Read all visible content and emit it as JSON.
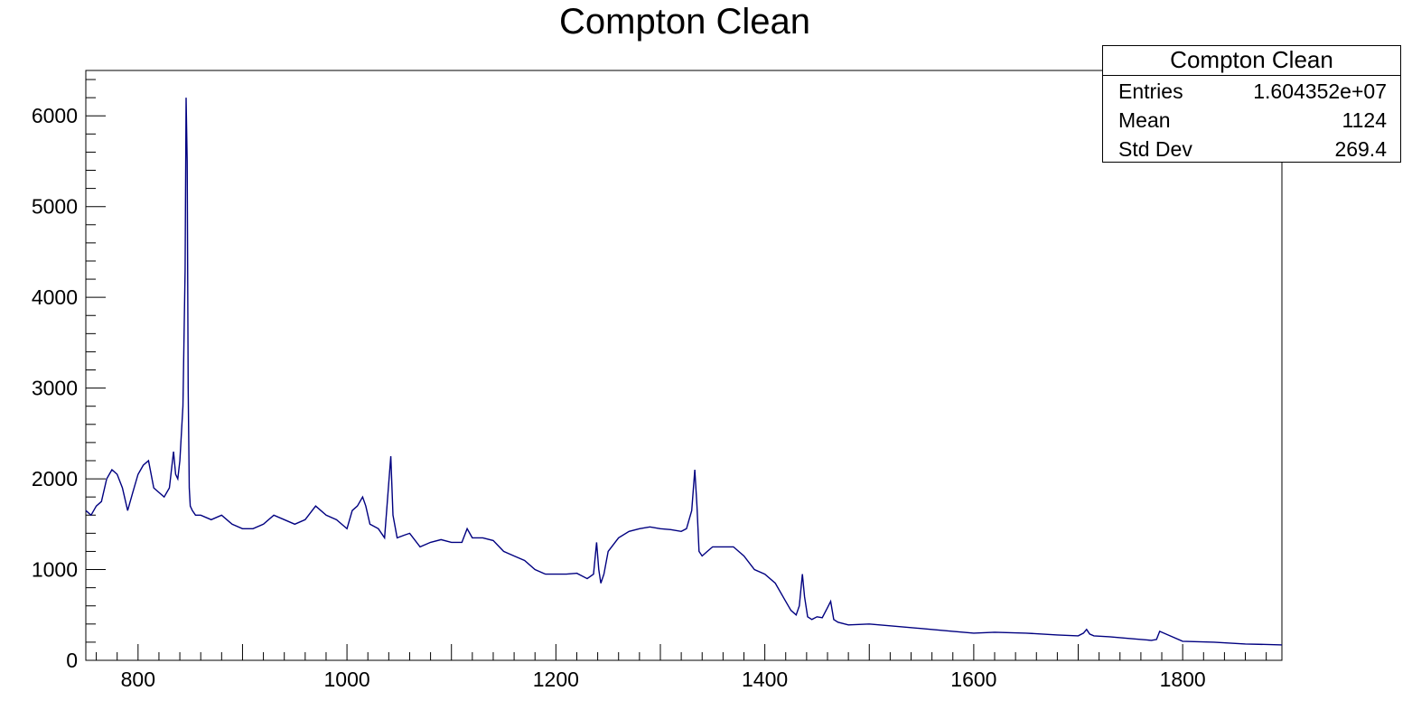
{
  "title": "Compton Clean",
  "stats": {
    "name": "Compton Clean",
    "rows": [
      {
        "label": "Entries",
        "value": "1.604352e+07"
      },
      {
        "label": "Mean",
        "value": "1124"
      },
      {
        "label": "Std Dev",
        "value": "269.4"
      }
    ]
  },
  "colors": {
    "line": "#000080",
    "axis": "#000000"
  },
  "chart_data": {
    "type": "line",
    "title": "Compton Clean",
    "xlabel": "",
    "ylabel": "",
    "xlim": [
      750,
      1895
    ],
    "ylim": [
      0,
      6500
    ],
    "xticks": [
      800,
      1000,
      1200,
      1400,
      1600,
      1800
    ],
    "yticks": [
      0,
      1000,
      2000,
      3000,
      4000,
      5000,
      6000
    ],
    "grid": false,
    "series": [
      {
        "x": [
          750,
          755,
          760,
          765,
          770,
          775,
          780,
          785,
          790,
          795,
          800,
          805,
          810,
          815,
          820,
          825,
          830,
          834,
          836,
          838,
          840,
          843,
          845,
          846,
          847,
          848,
          849,
          850,
          852,
          855,
          860,
          870,
          880,
          890,
          900,
          910,
          920,
          930,
          940,
          950,
          960,
          970,
          980,
          990,
          1000,
          1005,
          1010,
          1015,
          1018,
          1022,
          1030,
          1036,
          1040,
          1042,
          1044,
          1048,
          1055,
          1060,
          1070,
          1080,
          1090,
          1100,
          1110,
          1115,
          1120,
          1130,
          1140,
          1150,
          1160,
          1170,
          1180,
          1190,
          1200,
          1210,
          1220,
          1230,
          1236,
          1239,
          1241,
          1243,
          1246,
          1250,
          1260,
          1270,
          1280,
          1290,
          1300,
          1310,
          1320,
          1325,
          1330,
          1333,
          1335,
          1337,
          1340,
          1345,
          1350,
          1360,
          1370,
          1380,
          1390,
          1400,
          1410,
          1420,
          1425,
          1430,
          1433,
          1436,
          1438,
          1441,
          1445,
          1450,
          1455,
          1460,
          1463,
          1466,
          1470,
          1480,
          1500,
          1520,
          1550,
          1580,
          1600,
          1620,
          1650,
          1680,
          1700,
          1705,
          1708,
          1711,
          1715,
          1730,
          1750,
          1770,
          1775,
          1778,
          1800,
          1830,
          1860,
          1895
        ],
        "y": [
          1650,
          1600,
          1700,
          1750,
          2000,
          2100,
          2050,
          1900,
          1650,
          1850,
          2050,
          2150,
          2200,
          1900,
          1850,
          1800,
          1900,
          2300,
          2050,
          2000,
          2200,
          2800,
          4300,
          6200,
          5500,
          3000,
          1900,
          1700,
          1650,
          1600,
          1600,
          1550,
          1600,
          1500,
          1450,
          1450,
          1500,
          1600,
          1550,
          1500,
          1550,
          1700,
          1600,
          1550,
          1450,
          1650,
          1700,
          1800,
          1700,
          1500,
          1450,
          1350,
          1950,
          2250,
          1600,
          1350,
          1380,
          1400,
          1250,
          1300,
          1330,
          1300,
          1300,
          1450,
          1350,
          1350,
          1320,
          1200,
          1150,
          1100,
          1000,
          950,
          950,
          950,
          960,
          900,
          950,
          1300,
          1000,
          850,
          950,
          1200,
          1350,
          1420,
          1450,
          1470,
          1450,
          1440,
          1420,
          1450,
          1650,
          2100,
          1700,
          1200,
          1150,
          1200,
          1250,
          1250,
          1250,
          1150,
          1000,
          950,
          850,
          650,
          550,
          500,
          600,
          950,
          700,
          480,
          450,
          480,
          470,
          580,
          650,
          450,
          420,
          390,
          400,
          380,
          350,
          320,
          300,
          310,
          300,
          280,
          270,
          300,
          340,
          290,
          270,
          260,
          240,
          220,
          230,
          320,
          210,
          200,
          180,
          170
        ]
      }
    ]
  }
}
